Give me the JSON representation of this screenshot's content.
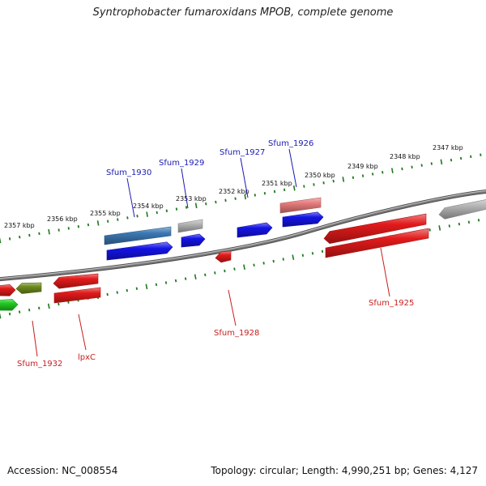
{
  "title": "Syntrophobacter fumaroxidans MPOB, complete genome",
  "accession": "Accession: NC_008554",
  "topology": "Topology: circular; Length: 4,990,251 bp; Genes: 4,127",
  "colors": {
    "backbone": "#7a7a7a",
    "tick": "#1e7a1e",
    "label_blue": "#1a1ab4",
    "label_red": "#c81e1e",
    "red_cds": "#e21a1a",
    "blue_cds": "#1414e6",
    "grey_cds": "#b4b4b4",
    "steel_cds": "#3c78b4",
    "pink_cds": "#e87c7c",
    "olive_cds": "#6e8c1e",
    "green_cds": "#22cc22"
  },
  "kbp_labels": [
    {
      "text": "2357 kbp"
    },
    {
      "text": "2356 kbp"
    },
    {
      "text": "2355 kbp"
    },
    {
      "text": "2354 kbp"
    },
    {
      "text": "2353 kbp"
    },
    {
      "text": "2352 kbp"
    },
    {
      "text": "2351 kbp"
    },
    {
      "text": "2350 kbp"
    },
    {
      "text": "2349 kbp"
    },
    {
      "text": "2348 kbp"
    },
    {
      "text": "2347 kbp"
    }
  ],
  "gene_labels": [
    {
      "text": "Sfum_1930",
      "color": "label_blue"
    },
    {
      "text": "Sfum_1929",
      "color": "label_blue"
    },
    {
      "text": "Sfum_1927",
      "color": "label_blue"
    },
    {
      "text": "Sfum_1926",
      "color": "label_blue"
    },
    {
      "text": "Sfum_1925",
      "color": "label_red"
    },
    {
      "text": "Sfum_1928",
      "color": "label_red"
    },
    {
      "text": "lpxC",
      "color": "label_red"
    },
    {
      "text": "Sfum_1932",
      "color": "label_red"
    }
  ],
  "features": [
    {
      "color": "steel_cds"
    },
    {
      "color": "blue_cds"
    },
    {
      "color": "grey_cds"
    },
    {
      "color": "blue_cds"
    },
    {
      "color": "blue_cds"
    },
    {
      "color": "pink_cds"
    },
    {
      "color": "blue_cds"
    },
    {
      "color": "red_cds"
    },
    {
      "color": "red_cds"
    },
    {
      "color": "grey_cds"
    },
    {
      "color": "red_cds"
    },
    {
      "color": "red_cds"
    },
    {
      "color": "red_cds"
    },
    {
      "color": "olive_cds"
    },
    {
      "color": "red_cds"
    },
    {
      "color": "green_cds"
    }
  ]
}
